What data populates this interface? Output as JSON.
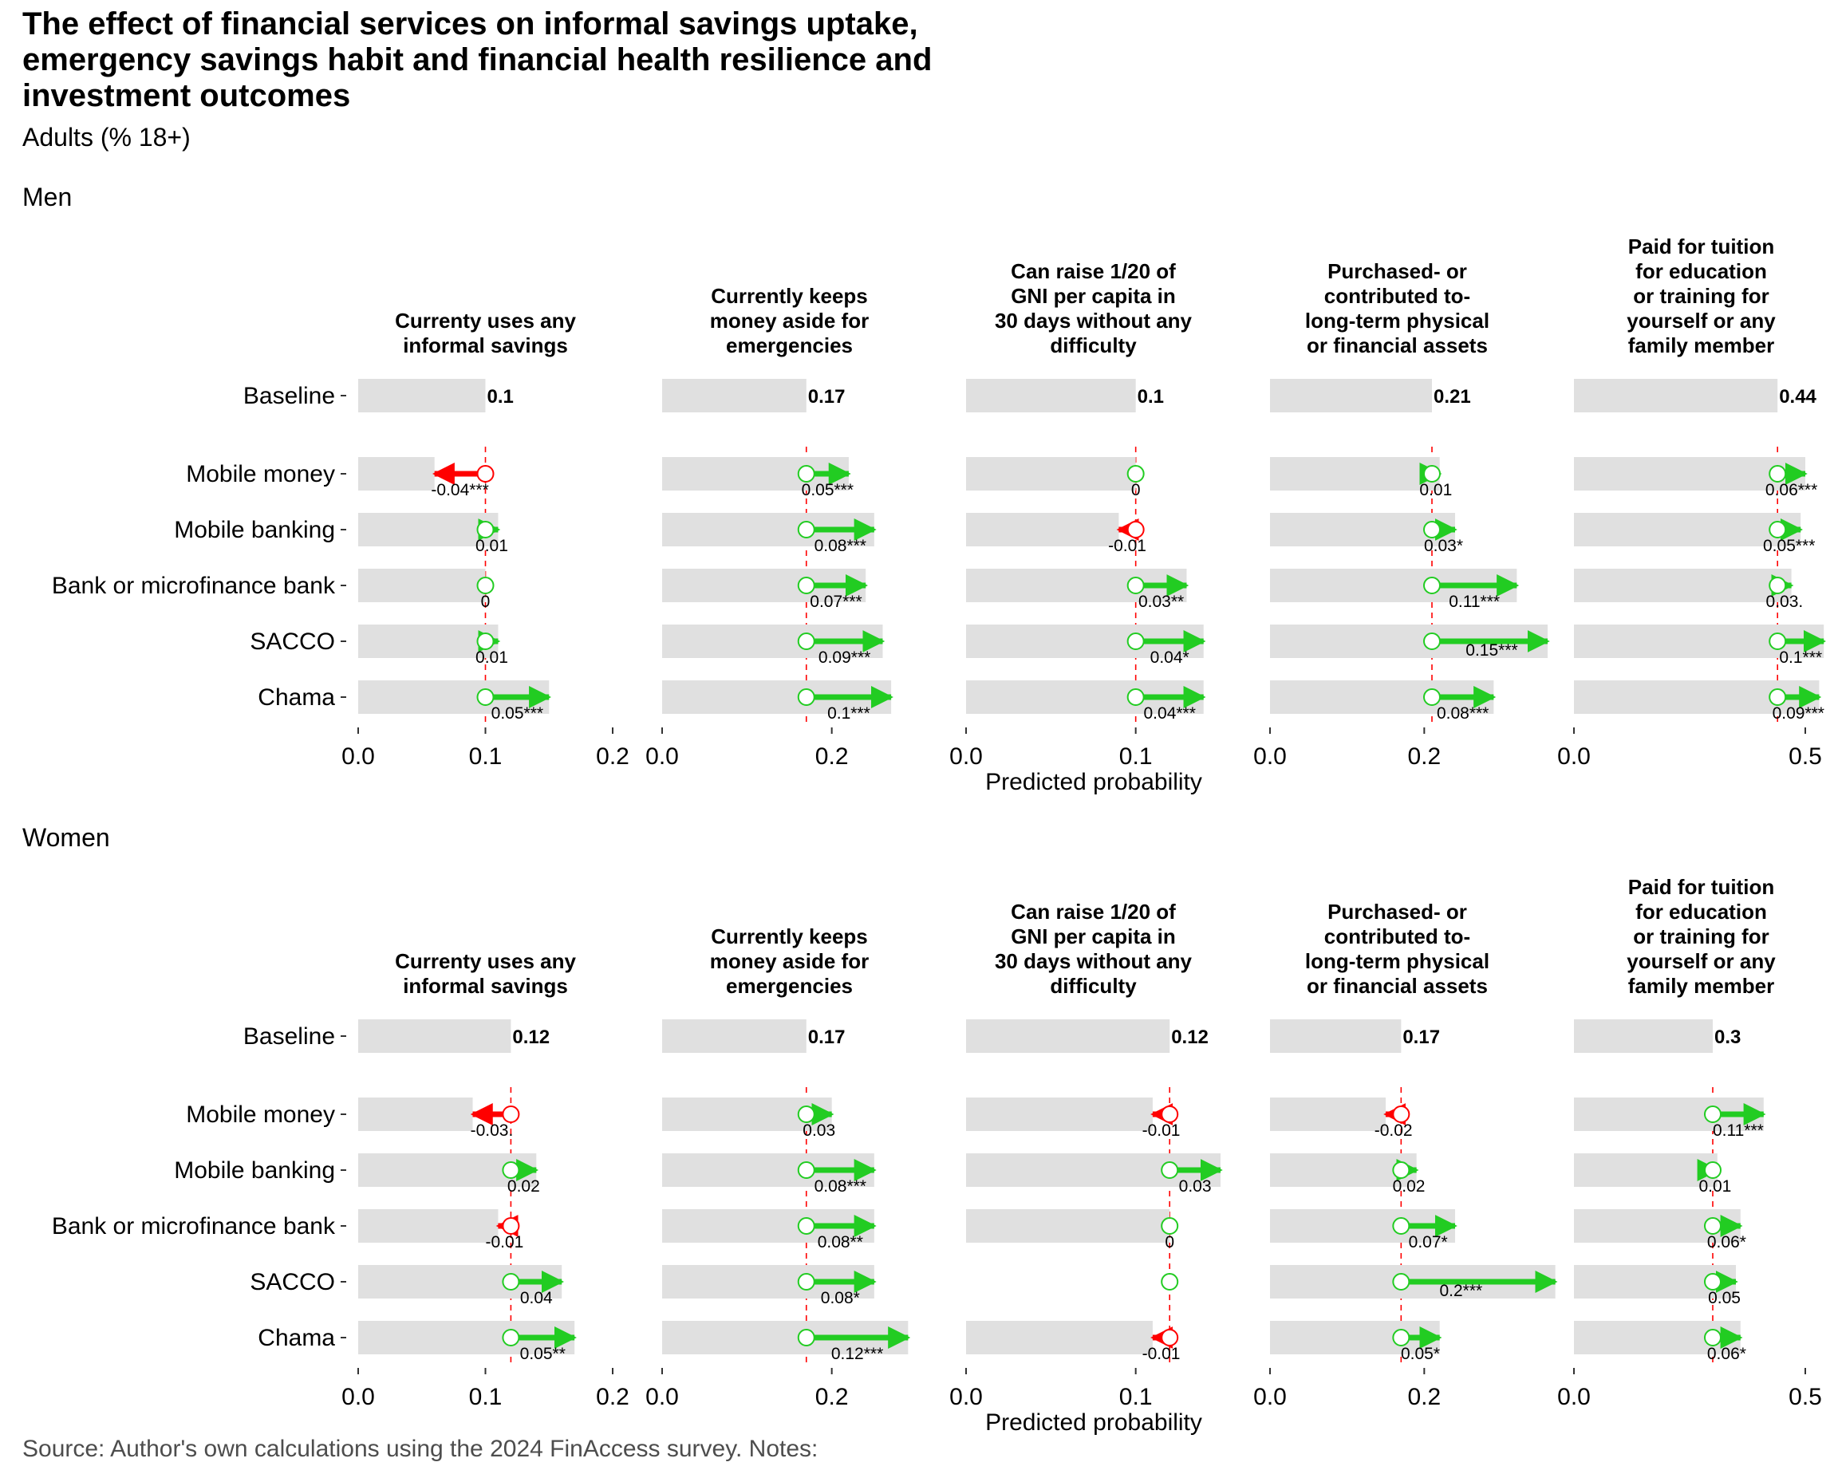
{
  "title": "The effect of financial services on informal savings uptake, emergency savings habit and financial health resilience and investment outcomes",
  "subtitle": "Adults (% 18+)",
  "source": "Source: Author's own calculations using the 2024 FinAccess survey. Notes:",
  "x_axis_title": "Predicted probability",
  "colors": {
    "positive": "#22cc22",
    "negative": "#ff0000",
    "bar": "#e0e0e0",
    "reference_line": "#ff0000"
  },
  "chart_data": {
    "type": "bar",
    "rows": [
      "Baseline",
      "Mobile money",
      "Mobile banking",
      "Bank or microfinance bank",
      "SACCO",
      "Chama"
    ],
    "groups": [
      {
        "name": "Men",
        "panels": [
          {
            "title": [
              "Currenty uses any",
              "informal savings"
            ],
            "xlim": [
              0,
              0.2
            ],
            "ticks": [
              "0.0",
              "0.1",
              "0.2"
            ],
            "baseline": 0.1,
            "baseline_label": "0.1",
            "effects": [
              {
                "row": "Mobile money",
                "value": -0.04,
                "label": "-0.04***"
              },
              {
                "row": "Mobile banking",
                "value": 0.01,
                "label": "0.01"
              },
              {
                "row": "Bank or microfinance bank",
                "value": 0,
                "label": "0"
              },
              {
                "row": "SACCO",
                "value": 0.01,
                "label": "0.01"
              },
              {
                "row": "Chama",
                "value": 0.05,
                "label": "0.05***"
              }
            ]
          },
          {
            "title": [
              "Currently keeps",
              "money aside for",
              "emergencies"
            ],
            "xlim": [
              0,
              0.3
            ],
            "ticks": [
              "0.0",
              "0.2"
            ],
            "baseline": 0.17,
            "baseline_label": "0.17",
            "effects": [
              {
                "row": "Mobile money",
                "value": 0.05,
                "label": "0.05***"
              },
              {
                "row": "Mobile banking",
                "value": 0.08,
                "label": "0.08***"
              },
              {
                "row": "Bank or microfinance bank",
                "value": 0.07,
                "label": "0.07***"
              },
              {
                "row": "SACCO",
                "value": 0.09,
                "label": "0.09***"
              },
              {
                "row": "Chama",
                "value": 0.1,
                "label": "0.1***"
              }
            ]
          },
          {
            "title": [
              "Can raise 1/20 of",
              "GNI per capita in",
              "30 days without any",
              "difficulty"
            ],
            "xlim": [
              0,
              0.15
            ],
            "ticks": [
              "0.0",
              "0.1"
            ],
            "baseline": 0.1,
            "baseline_label": "0.1",
            "effects": [
              {
                "row": "Mobile money",
                "value": 0,
                "label": "0"
              },
              {
                "row": "Mobile banking",
                "value": -0.01,
                "label": "-0.01"
              },
              {
                "row": "Bank or microfinance bank",
                "value": 0.03,
                "label": "0.03**"
              },
              {
                "row": "SACCO",
                "value": 0.04,
                "label": "0.04*"
              },
              {
                "row": "Chama",
                "value": 0.04,
                "label": "0.04***"
              }
            ]
          },
          {
            "title": [
              "Purchased- or",
              "contributed to-",
              "long-term physical",
              "or financial assets"
            ],
            "xlim": [
              0,
              0.33
            ],
            "ticks": [
              "0.0",
              "0.2"
            ],
            "baseline": 0.21,
            "baseline_label": "0.21",
            "effects": [
              {
                "row": "Mobile money",
                "value": 0.01,
                "label": "0.01"
              },
              {
                "row": "Mobile banking",
                "value": 0.03,
                "label": "0.03*"
              },
              {
                "row": "Bank or microfinance bank",
                "value": 0.11,
                "label": "0.11***"
              },
              {
                "row": "SACCO",
                "value": 0.15,
                "label": "0.15***"
              },
              {
                "row": "Chama",
                "value": 0.08,
                "label": "0.08***"
              }
            ]
          },
          {
            "title": [
              "Paid for tuition",
              "for education",
              "or training for",
              "yourself or any",
              "family member"
            ],
            "xlim": [
              0,
              0.55
            ],
            "ticks": [
              "0.0",
              "0.5"
            ],
            "baseline": 0.44,
            "baseline_label": "0.44",
            "effects": [
              {
                "row": "Mobile money",
                "value": 0.06,
                "label": "0.06***"
              },
              {
                "row": "Mobile banking",
                "value": 0.05,
                "label": "0.05***"
              },
              {
                "row": "Bank or microfinance bank",
                "value": 0.03,
                "label": "0.03."
              },
              {
                "row": "SACCO",
                "value": 0.1,
                "label": "0.1***"
              },
              {
                "row": "Chama",
                "value": 0.09,
                "label": "0.09***"
              }
            ]
          }
        ]
      },
      {
        "name": "Women",
        "panels": [
          {
            "title": [
              "Currenty uses any",
              "informal savings"
            ],
            "xlim": [
              0,
              0.2
            ],
            "ticks": [
              "0.0",
              "0.1",
              "0.2"
            ],
            "baseline": 0.12,
            "baseline_label": "0.12",
            "effects": [
              {
                "row": "Mobile money",
                "value": -0.03,
                "label": "-0.03."
              },
              {
                "row": "Mobile banking",
                "value": 0.02,
                "label": "0.02"
              },
              {
                "row": "Bank or microfinance bank",
                "value": -0.01,
                "label": "-0.01"
              },
              {
                "row": "SACCO",
                "value": 0.04,
                "label": "0.04"
              },
              {
                "row": "Chama",
                "value": 0.05,
                "label": "0.05**"
              }
            ]
          },
          {
            "title": [
              "Currently keeps",
              "money aside for",
              "emergencies"
            ],
            "xlim": [
              0,
              0.3
            ],
            "ticks": [
              "0.0",
              "0.2"
            ],
            "baseline": 0.17,
            "baseline_label": "0.17",
            "effects": [
              {
                "row": "Mobile money",
                "value": 0.03,
                "label": "0.03"
              },
              {
                "row": "Mobile banking",
                "value": 0.08,
                "label": "0.08***"
              },
              {
                "row": "Bank or microfinance bank",
                "value": 0.08,
                "label": "0.08**"
              },
              {
                "row": "SACCO",
                "value": 0.08,
                "label": "0.08*"
              },
              {
                "row": "Chama",
                "value": 0.12,
                "label": "0.12***"
              }
            ]
          },
          {
            "title": [
              "Can raise 1/20 of",
              "GNI per capita in",
              "30 days without any",
              "difficulty"
            ],
            "xlim": [
              0,
              0.15
            ],
            "ticks": [
              "0.0",
              "0.1"
            ],
            "baseline": 0.12,
            "baseline_label": "0.12",
            "effects": [
              {
                "row": "Mobile money",
                "value": -0.01,
                "label": "-0.01"
              },
              {
                "row": "Mobile banking",
                "value": 0.03,
                "label": "0.03"
              },
              {
                "row": "Bank or microfinance bank",
                "value": 0,
                "label": "0"
              },
              {
                "row": "SACCO",
                "value": null,
                "label": ""
              },
              {
                "row": "Chama",
                "value": -0.01,
                "label": "-0.01"
              }
            ]
          },
          {
            "title": [
              "Purchased- or",
              "contributed to-",
              "long-term physical",
              "or financial assets"
            ],
            "xlim": [
              0,
              0.33
            ],
            "ticks": [
              "0.0",
              "0.2"
            ],
            "baseline": 0.17,
            "baseline_label": "0.17",
            "effects": [
              {
                "row": "Mobile money",
                "value": -0.02,
                "label": "-0.02"
              },
              {
                "row": "Mobile banking",
                "value": 0.02,
                "label": "0.02"
              },
              {
                "row": "Bank or microfinance bank",
                "value": 0.07,
                "label": "0.07*"
              },
              {
                "row": "SACCO",
                "value": 0.2,
                "label": "0.2***"
              },
              {
                "row": "Chama",
                "value": 0.05,
                "label": "0.05*"
              }
            ]
          },
          {
            "title": [
              "Paid for tuition",
              "for education",
              "or training for",
              "yourself or any",
              "family member"
            ],
            "xlim": [
              0,
              0.55
            ],
            "ticks": [
              "0.0",
              "0.5"
            ],
            "baseline": 0.3,
            "baseline_label": "0.3",
            "effects": [
              {
                "row": "Mobile money",
                "value": 0.11,
                "label": "0.11***"
              },
              {
                "row": "Mobile banking",
                "value": 0.01,
                "label": "0.01"
              },
              {
                "row": "Bank or microfinance bank",
                "value": 0.06,
                "label": "0.06*"
              },
              {
                "row": "SACCO",
                "value": 0.05,
                "label": "0.05"
              },
              {
                "row": "Chama",
                "value": 0.06,
                "label": "0.06*"
              }
            ]
          }
        ]
      }
    ]
  }
}
